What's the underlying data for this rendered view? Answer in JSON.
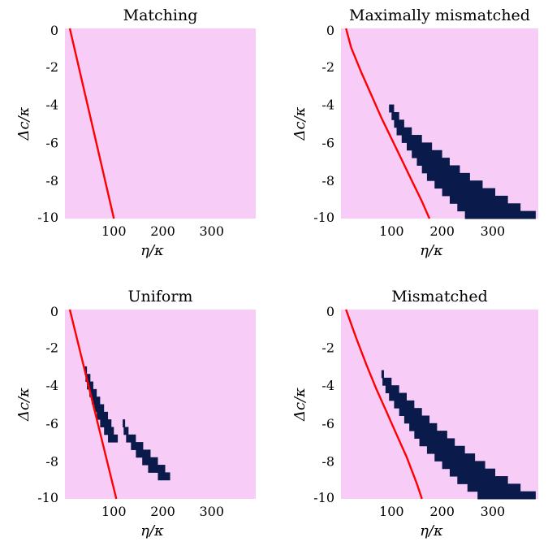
{
  "colors": {
    "background": "#f7ccf7",
    "region": "#0a1a4a",
    "line": "#ff0000"
  },
  "chart_data": [
    {
      "type": "heatmap",
      "title": "Matching",
      "xlabel": "η/κ",
      "ylabel": "Δc/κ",
      "xlim": [
        0,
        390
      ],
      "ylim": [
        -10,
        0
      ],
      "xticks": [
        100,
        200,
        300
      ],
      "xtick_labels": [
        "100",
        "200",
        "300"
      ],
      "yticks": [
        0,
        -2,
        -4,
        -6,
        -8,
        -10
      ],
      "ytick_labels": [
        "0",
        "-2",
        "-4",
        "-6",
        "-8",
        "-10"
      ],
      "line": {
        "x": [
          10,
          100
        ],
        "y": [
          0,
          -10
        ]
      },
      "region": []
    },
    {
      "type": "heatmap",
      "title": "Maximally mismatched",
      "xlabel": "η/κ",
      "ylabel": "Δc/κ",
      "xlim": [
        0,
        390
      ],
      "ylim": [
        -10,
        0
      ],
      "xticks": [
        100,
        200,
        300
      ],
      "xtick_labels": [
        "100",
        "200",
        "300"
      ],
      "yticks": [
        0,
        -2,
        -4,
        -6,
        -8,
        -10
      ],
      "ytick_labels": [
        "0",
        "-2",
        "-4",
        "-6",
        "-8",
        "-10"
      ],
      "line": {
        "x": [
          10,
          20,
          40,
          60,
          80,
          100,
          120,
          140,
          160,
          175
        ],
        "y": [
          0,
          -1,
          -2.3,
          -3.5,
          -4.7,
          -5.8,
          -6.9,
          -8,
          -9.1,
          -10
        ]
      },
      "region": [
        [
          -4.2,
          95,
          105
        ],
        [
          -4.6,
          100,
          115
        ],
        [
          -5.0,
          105,
          125
        ],
        [
          -5.4,
          110,
          140
        ],
        [
          -5.8,
          120,
          160
        ],
        [
          -6.2,
          130,
          180
        ],
        [
          -6.6,
          140,
          200
        ],
        [
          -7.0,
          150,
          215
        ],
        [
          -7.4,
          160,
          235
        ],
        [
          -7.8,
          170,
          255
        ],
        [
          -8.2,
          185,
          280
        ],
        [
          -8.6,
          200,
          305
        ],
        [
          -9.0,
          215,
          330
        ],
        [
          -9.4,
          230,
          355
        ],
        [
          -9.8,
          245,
          385
        ]
      ]
    },
    {
      "type": "heatmap",
      "title": "Uniform",
      "xlabel": "η/κ",
      "ylabel": "Δc/κ",
      "xlim": [
        0,
        390
      ],
      "ylim": [
        -10,
        0
      ],
      "xticks": [
        100,
        200,
        300
      ],
      "xtick_labels": [
        "100",
        "200",
        "300"
      ],
      "yticks": [
        0,
        -2,
        -4,
        -6,
        -8,
        -10
      ],
      "ytick_labels": [
        "0",
        "-2",
        "-4",
        "-6",
        "-8",
        "-10"
      ],
      "line": {
        "x": [
          10,
          105
        ],
        "y": [
          0,
          -10
        ]
      },
      "region": [
        [
          -3.2,
          40,
          45
        ],
        [
          -3.6,
          42,
          52
        ],
        [
          -4.0,
          45,
          58
        ],
        [
          -4.4,
          50,
          65
        ],
        [
          -4.8,
          55,
          72
        ],
        [
          -5.2,
          60,
          80
        ],
        [
          -5.6,
          65,
          88
        ],
        [
          -6.0,
          72,
          95
        ],
        [
          -6.4,
          80,
          100
        ],
        [
          -6.8,
          88,
          108
        ],
        [
          -6.0,
          118,
          123
        ],
        [
          -6.4,
          120,
          130
        ],
        [
          -6.8,
          125,
          145
        ],
        [
          -7.2,
          135,
          160
        ],
        [
          -7.6,
          145,
          175
        ],
        [
          -8.0,
          158,
          190
        ],
        [
          -8.4,
          170,
          205
        ],
        [
          -8.8,
          190,
          215
        ]
      ]
    },
    {
      "type": "heatmap",
      "title": "Mismatched",
      "xlabel": "η/κ",
      "ylabel": "Δc/κ",
      "xlim": [
        0,
        390
      ],
      "ylim": [
        -10,
        0
      ],
      "xticks": [
        100,
        200,
        300
      ],
      "xtick_labels": [
        "100",
        "200",
        "300"
      ],
      "yticks": [
        0,
        -2,
        -4,
        -6,
        -8,
        -10
      ],
      "ytick_labels": [
        "0",
        "-2",
        "-4",
        "-6",
        "-8",
        "-10"
      ],
      "line": {
        "x": [
          10,
          30,
          50,
          70,
          90,
          110,
          130,
          150,
          160
        ],
        "y": [
          0,
          -1.5,
          -2.9,
          -4.2,
          -5.4,
          -6.6,
          -7.8,
          -9.2,
          -10
        ]
      },
      "region": [
        [
          -3.4,
          80,
          85
        ],
        [
          -3.8,
          82,
          100
        ],
        [
          -4.2,
          88,
          115
        ],
        [
          -4.6,
          95,
          130
        ],
        [
          -5.0,
          105,
          145
        ],
        [
          -5.4,
          115,
          160
        ],
        [
          -5.8,
          125,
          175
        ],
        [
          -6.2,
          135,
          190
        ],
        [
          -6.6,
          145,
          210
        ],
        [
          -7.0,
          155,
          225
        ],
        [
          -7.4,
          170,
          245
        ],
        [
          -7.8,
          185,
          265
        ],
        [
          -8.2,
          200,
          285
        ],
        [
          -8.6,
          215,
          305
        ],
        [
          -9.0,
          230,
          330
        ],
        [
          -9.4,
          250,
          355
        ],
        [
          -9.8,
          270,
          385
        ]
      ]
    }
  ]
}
